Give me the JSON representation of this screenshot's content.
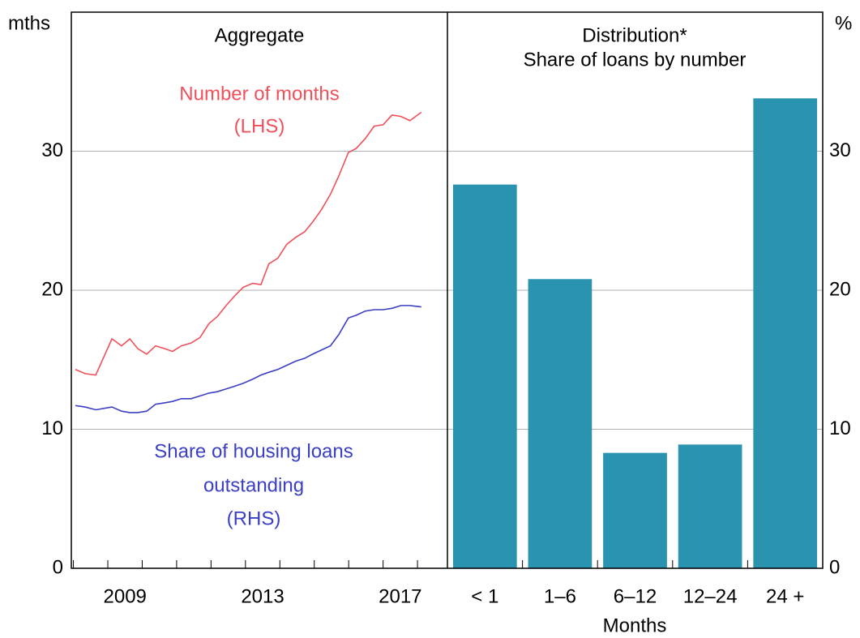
{
  "chart_data": [
    {
      "type": "line",
      "title": "Aggregate",
      "x": [
        2008.06,
        2008.34,
        2008.65,
        2009.12,
        2009.4,
        2009.64,
        2009.87,
        2010.13,
        2010.39,
        2010.65,
        2010.88,
        2011.14,
        2011.42,
        2011.68,
        2011.94,
        2012.18,
        2012.44,
        2012.69,
        2012.93,
        2013.21,
        2013.45,
        2013.68,
        2013.94,
        2014.2,
        2014.46,
        2014.72,
        2014.95,
        2015.21,
        2015.47,
        2015.71,
        2015.99,
        2016.22,
        2016.48,
        2016.74,
        2017.0,
        2017.26,
        2017.52,
        2017.78,
        2018.11
      ],
      "series": [
        {
          "name": "Number of months",
          "color": "#f0505a",
          "annotation": [
            "Number of months",
            "(LHS)"
          ],
          "values": [
            14.3,
            14.0,
            13.9,
            16.5,
            16.0,
            16.5,
            15.8,
            15.4,
            16.0,
            15.8,
            15.6,
            16.0,
            16.2,
            16.6,
            17.6,
            18.1,
            18.9,
            19.6,
            20.2,
            20.5,
            20.4,
            21.9,
            22.3,
            23.3,
            23.8,
            24.2,
            24.9,
            25.8,
            26.9,
            28.2,
            29.9,
            30.2,
            30.9,
            31.8,
            31.9,
            32.6,
            32.5,
            32.2,
            32.8
          ]
        },
        {
          "name": "Share of housing loans outstanding",
          "color": "#3a3fc4",
          "axis": "y2",
          "annotation": [
            "Share of housing loans",
            "outstanding",
            "(RHS)"
          ],
          "values": [
            11.7,
            11.6,
            11.4,
            11.6,
            11.3,
            11.2,
            11.2,
            11.3,
            11.8,
            11.9,
            12.0,
            12.2,
            12.2,
            12.4,
            12.6,
            12.7,
            12.9,
            13.1,
            13.3,
            13.6,
            13.9,
            14.1,
            14.3,
            14.6,
            14.9,
            15.1,
            15.4,
            15.7,
            16.0,
            16.8,
            18.0,
            18.2,
            18.5,
            18.6,
            18.6,
            18.7,
            18.9,
            18.9,
            18.8
          ]
        }
      ],
      "xlim": [
        2007.94,
        2018.87
      ],
      "xticks": [
        {
          "value": 2009.5,
          "label": "2009"
        },
        {
          "value": 2013.5,
          "label": "2013"
        },
        {
          "value": 2017.5,
          "label": "2017"
        }
      ],
      "xminorticks": [
        2008,
        2009,
        2010,
        2011,
        2012,
        2013,
        2014,
        2015,
        2016,
        2017,
        2018
      ],
      "ylim": [
        0,
        40
      ],
      "yticks": [
        0,
        10,
        20,
        30
      ],
      "ylabel": "mths",
      "y2lim": [
        0,
        40
      ],
      "grid": true
    },
    {
      "type": "bar",
      "title": "Distribution*",
      "subtitle": "Share of loans by number",
      "categories": [
        "< 1",
        "1–6",
        "6–12",
        "12–24",
        "24 +"
      ],
      "values": [
        27.6,
        20.8,
        8.3,
        8.9,
        33.8
      ],
      "color": "#2a93b0",
      "xlabel": "Months",
      "ylim": [
        0,
        40
      ],
      "yticks": [
        0,
        10,
        20,
        30
      ],
      "ylabel": "%",
      "grid": true
    }
  ]
}
